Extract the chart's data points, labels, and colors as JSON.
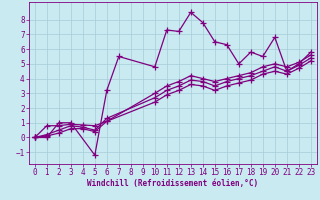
{
  "xlabel": "Windchill (Refroidissement éolien,°C)",
  "xlim": [
    -0.5,
    23.5
  ],
  "ylim": [
    -1.8,
    9.2
  ],
  "yticks": [
    -1,
    0,
    1,
    2,
    3,
    4,
    5,
    6,
    7,
    8
  ],
  "xticks": [
    0,
    1,
    2,
    3,
    4,
    5,
    6,
    7,
    8,
    9,
    10,
    11,
    12,
    13,
    14,
    15,
    16,
    17,
    18,
    19,
    20,
    21,
    22,
    23
  ],
  "bg_color": "#c8eaf0",
  "grid_color": "#a8cdd8",
  "line_color": "#800080",
  "line_width": 0.9,
  "marker": "+",
  "marker_size": 4,
  "series": [
    {
      "x": [
        0,
        1,
        2,
        3,
        5,
        6,
        7,
        10,
        11,
        12,
        13,
        14,
        15,
        16,
        17,
        18,
        19,
        20,
        21,
        22,
        23
      ],
      "y": [
        0,
        0,
        1,
        1,
        -1.2,
        3.2,
        5.5,
        4.8,
        7.3,
        7.2,
        8.5,
        7.8,
        6.5,
        6.3,
        5.0,
        5.8,
        5.5,
        6.8,
        4.5,
        5.0,
        5.8
      ]
    },
    {
      "x": [
        0,
        1,
        2,
        3,
        4,
        5,
        6,
        10,
        11,
        12,
        13,
        14,
        15,
        16,
        17,
        18,
        19,
        20,
        21,
        22,
        23
      ],
      "y": [
        0,
        0.8,
        0.8,
        0.9,
        0.85,
        0.8,
        1.1,
        3.0,
        3.5,
        3.8,
        4.2,
        4.0,
        3.8,
        4.0,
        4.2,
        4.4,
        4.8,
        5.0,
        4.8,
        5.1,
        5.6
      ]
    },
    {
      "x": [
        0,
        1,
        2,
        3,
        4,
        5,
        6,
        10,
        11,
        12,
        13,
        14,
        15,
        16,
        17,
        18,
        19,
        20,
        21,
        22,
        23
      ],
      "y": [
        0,
        0.2,
        0.5,
        0.8,
        0.7,
        0.5,
        1.3,
        2.7,
        3.2,
        3.5,
        3.9,
        3.8,
        3.5,
        3.8,
        4.0,
        4.2,
        4.5,
        4.8,
        4.5,
        4.9,
        5.4
      ]
    },
    {
      "x": [
        0,
        1,
        2,
        3,
        4,
        5,
        6,
        10,
        11,
        12,
        13,
        14,
        15,
        16,
        17,
        18,
        19,
        20,
        21,
        22,
        23
      ],
      "y": [
        0,
        0.1,
        0.3,
        0.6,
        0.6,
        0.4,
        1.1,
        2.4,
        2.9,
        3.2,
        3.6,
        3.5,
        3.2,
        3.5,
        3.7,
        3.9,
        4.3,
        4.5,
        4.3,
        4.7,
        5.2
      ]
    }
  ]
}
